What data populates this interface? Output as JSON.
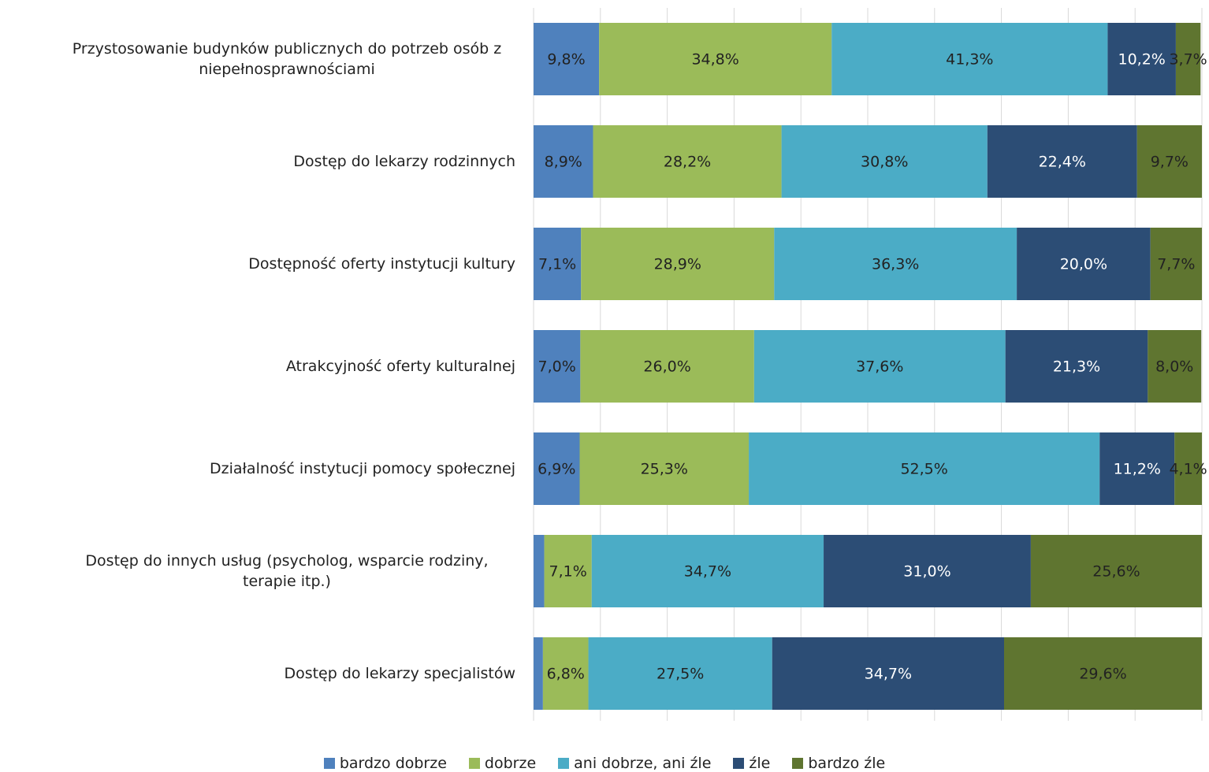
{
  "chart_data": {
    "type": "stacked_bar_horizontal",
    "categories": [
      "Przystosowanie budynków publicznych do potrzeb osób z niepełnosprawnościami",
      "Dostęp do lekarzy rodzinnych",
      "Dostępność oferty instytucji kultury",
      "Atrakcyjność oferty kulturalnej",
      "Działalność instytucji pomocy społecznej",
      "Dostęp do innych usług (psycholog, wsparcie rodziny, terapie itp.)",
      "Dostęp do lekarzy specjalistów"
    ],
    "series": [
      {
        "name": "bardzo dobrze",
        "color": "#4f81bd",
        "values": [
          9.8,
          8.9,
          7.1,
          7.0,
          6.9,
          1.6,
          1.4
        ],
        "value_labels": [
          "9,8%",
          "8,9%",
          "7,1%",
          "7,0%",
          "6,9%",
          null,
          null
        ]
      },
      {
        "name": "dobrze",
        "color": "#9bbb59",
        "values": [
          34.8,
          28.2,
          28.9,
          26.0,
          25.3,
          7.1,
          6.8
        ],
        "value_labels": [
          "34,8%",
          "28,2%",
          "28,9%",
          "26,0%",
          "25,3%",
          "7,1%",
          "6,8%"
        ]
      },
      {
        "name": "ani dobrze, ani źle",
        "color": "#4bacc6",
        "values": [
          41.3,
          30.8,
          36.3,
          37.6,
          52.5,
          34.7,
          27.5
        ],
        "value_labels": [
          "41,3%",
          "30,8%",
          "36,3%",
          "37,6%",
          "52,5%",
          "34,7%",
          "27,5%"
        ]
      },
      {
        "name": "źle",
        "color": "#2c4d75",
        "values": [
          10.2,
          22.4,
          20.0,
          21.3,
          11.2,
          31.0,
          34.7
        ],
        "value_labels": [
          "10,2%",
          "22,4%",
          "20,0%",
          "21,3%",
          "11,2%",
          "31,0%",
          "34,7%"
        ]
      },
      {
        "name": "bardzo źle",
        "color": "#5f7530",
        "values": [
          3.7,
          9.7,
          7.7,
          8.0,
          4.1,
          25.6,
          29.6
        ],
        "value_labels": [
          "3,7%",
          "9,7%",
          "7,7%",
          "8,0%",
          "4,1%",
          "25,6%",
          "29,6%"
        ]
      }
    ],
    "xlim": [
      0,
      100
    ],
    "xticks": [
      0,
      10,
      20,
      30,
      40,
      50,
      60,
      70,
      80,
      90,
      100
    ],
    "grid": true,
    "legend": "bottom"
  }
}
